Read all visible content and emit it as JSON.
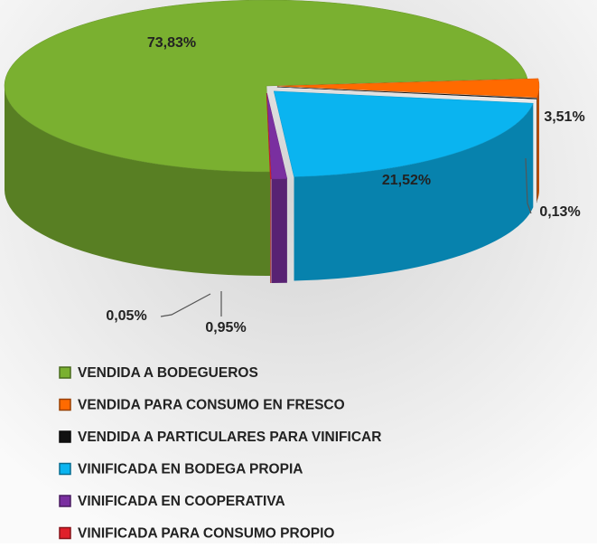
{
  "chart_data": {
    "type": "pie",
    "categories": [
      "VENDIDA A BODEGUEROS",
      "VENDIDA PARA CONSUMO EN FRESCO",
      "VENDIDA A PARTICULARES PARA VINIFICAR",
      "VINIFICADA EN BODEGA PROPIA",
      "VINIFICADA EN COOPERATIVA",
      "VINIFICADA PARA CONSUMO PROPIO"
    ],
    "values": [
      73.83,
      3.51,
      0.13,
      21.52,
      0.95,
      0.05
    ],
    "value_labels": [
      "73,83%",
      "3,51%",
      "0,13%",
      "21,52%",
      "0,95%",
      "0,05%"
    ],
    "colors": [
      "#7ab030",
      "#ff6a00",
      "#111111",
      "#0ab4f0",
      "#7a2fa0",
      "#e0202a"
    ],
    "legend": "bottom"
  }
}
